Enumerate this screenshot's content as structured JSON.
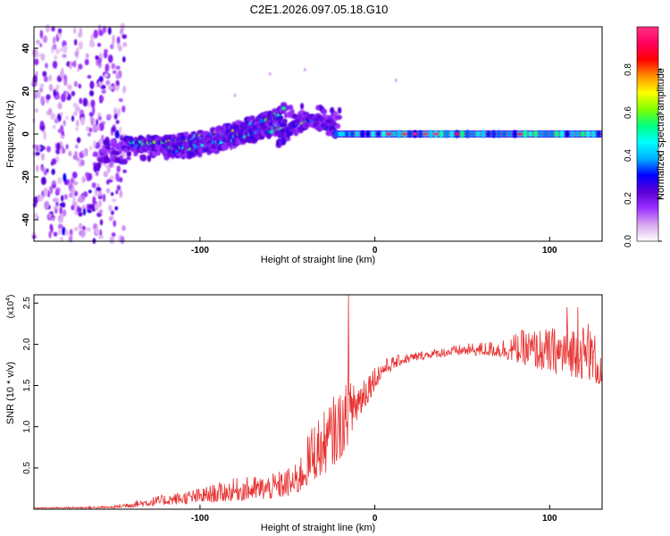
{
  "chart_data": [
    {
      "type": "heatmap",
      "title": "C2E1.2026.097.05.18.G10",
      "xlabel": "Height of straight line (km)",
      "ylabel": "Frequency (Hz)",
      "xlim": [
        -195,
        130
      ],
      "ylim": [
        -50,
        50
      ],
      "xticks": [
        -100,
        0,
        100
      ],
      "yticks": [
        -40,
        -20,
        0,
        20,
        40
      ],
      "colorbar": {
        "label": "Normalized spectral amplitude",
        "range": [
          0,
          1
        ],
        "ticks": [
          0.0,
          0.2,
          0.4,
          0.6,
          0.8
        ],
        "colors": [
          "#ffffff",
          "#d8a8f0",
          "#9b30ff",
          "#5b00d8",
          "#0000ff",
          "#00b0ff",
          "#00ffff",
          "#00ff80",
          "#80ff00",
          "#ffff00",
          "#ff9000",
          "#ff0000",
          "#ff0060",
          "#ff3080"
        ]
      },
      "features": {
        "noise_region_x": [
          -195,
          -143
        ],
        "noise_y_range": [
          -50,
          50
        ],
        "main_band": [
          [
            -143,
            -5
          ],
          [
            -120,
            -4
          ],
          [
            -100,
            -2
          ],
          [
            -80,
            2
          ],
          [
            -60,
            7
          ],
          [
            -52,
            11
          ]
        ],
        "second_band": [
          [
            -120,
            -8
          ],
          [
            -100,
            -6
          ],
          [
            -80,
            -2
          ],
          [
            -60,
            2
          ],
          [
            -52,
            4
          ]
        ],
        "upper_band": [
          [
            -55,
            -3
          ],
          [
            -45,
            3
          ],
          [
            -38,
            7
          ],
          [
            -30,
            5
          ],
          [
            -22,
            1
          ]
        ],
        "flat_line": {
          "x": [
            -22,
            130
          ],
          "y": 0
        }
      }
    },
    {
      "type": "line",
      "xlabel": "Height of straight line (km)",
      "ylabel": "SNR (10 * v/v)",
      "multiplier_label": "(x10",
      "multiplier_exp": "4",
      "xlim": [
        -195,
        130
      ],
      "ylim": [
        0,
        2.6
      ],
      "xticks": [
        -100,
        0,
        100
      ],
      "yticks": [
        0.5,
        1.0,
        1.5,
        2.0,
        2.5
      ],
      "ytick_labels": [
        "0.5",
        "1.0",
        "1.5",
        "2.0",
        "2.5"
      ],
      "series": [
        {
          "name": "SNR",
          "color": "#e83030",
          "envelope": [
            [
              -195,
              0.01,
              0.02
            ],
            [
              -150,
              0.01,
              0.04
            ],
            [
              -140,
              0.02,
              0.1
            ],
            [
              -120,
              0.05,
              0.18
            ],
            [
              -100,
              0.07,
              0.26
            ],
            [
              -80,
              0.1,
              0.38
            ],
            [
              -60,
              0.12,
              0.42
            ],
            [
              -45,
              0.16,
              0.55
            ],
            [
              -40,
              0.25,
              0.8
            ],
            [
              -35,
              0.35,
              1.1
            ],
            [
              -30,
              0.4,
              1.15
            ],
            [
              -25,
              0.5,
              1.35
            ],
            [
              -20,
              0.6,
              1.45
            ],
            [
              -15,
              0.8,
              1.55
            ],
            [
              -10,
              1.05,
              1.6
            ],
            [
              -5,
              1.25,
              1.7
            ],
            [
              0,
              1.45,
              1.75
            ],
            [
              5,
              1.62,
              1.82
            ],
            [
              15,
              1.75,
              1.88
            ],
            [
              30,
              1.83,
              1.93
            ],
            [
              50,
              1.87,
              2.0
            ],
            [
              70,
              1.85,
              2.05
            ],
            [
              85,
              1.75,
              2.18
            ],
            [
              100,
              1.65,
              2.2
            ],
            [
              115,
              1.6,
              2.28
            ],
            [
              125,
              1.55,
              2.2
            ],
            [
              130,
              1.45,
              1.85
            ]
          ],
          "spikes": [
            [
              -15,
              2.62
            ],
            [
              -12,
              1.5
            ],
            [
              110,
              2.45
            ],
            [
              116,
              2.45
            ],
            [
              122,
              2.25
            ]
          ]
        }
      ]
    }
  ]
}
